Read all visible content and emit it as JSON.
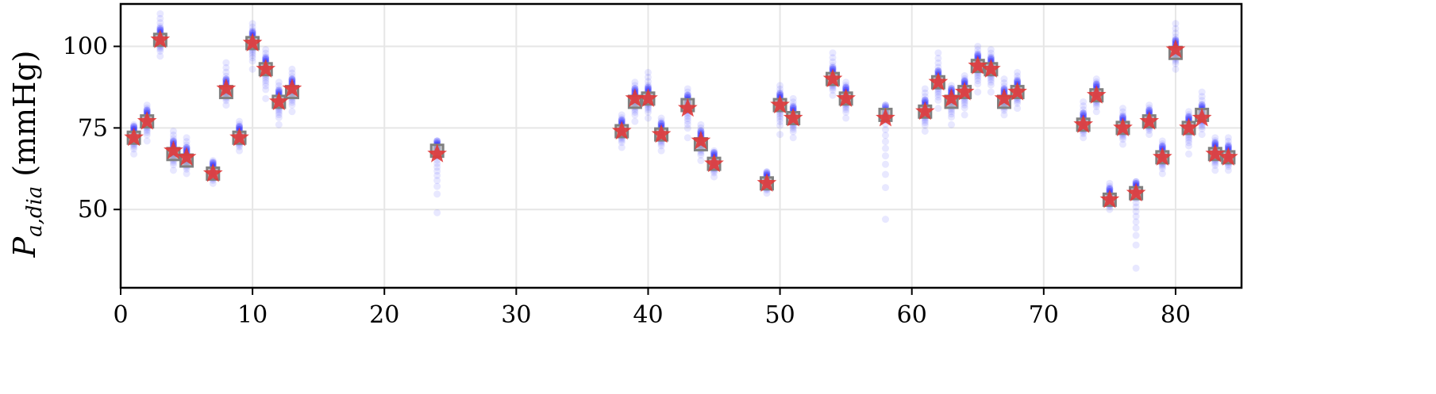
{
  "chart_data": {
    "type": "scatter",
    "title": "",
    "xlabel": "",
    "ylabel": {
      "symbol": "P",
      "subscript": "a,dia",
      "unit": "(mmHg)"
    },
    "xlim": [
      0,
      85
    ],
    "ylim": [
      26,
      113
    ],
    "xticks": [
      0,
      10,
      20,
      30,
      40,
      50,
      60,
      70,
      80
    ],
    "yticks": [
      50,
      75,
      100
    ],
    "grid": true,
    "colors": {
      "samples": "#0000ff",
      "square_fill": "#b8b8b8",
      "square_edge": "#808080",
      "star": "#e03838",
      "grid": "#e6e6e6"
    },
    "series": [
      {
        "marker": "square",
        "x": [
          1,
          2,
          3,
          4,
          5,
          7,
          8,
          9,
          10,
          11,
          12,
          13,
          24,
          38,
          39,
          40,
          41,
          43,
          44,
          45,
          49,
          50,
          51,
          54,
          55,
          58,
          61,
          62,
          63,
          64,
          65,
          66,
          67,
          68,
          73,
          74,
          75,
          76,
          77,
          78,
          79,
          80,
          81,
          82,
          83,
          84
        ],
        "y": [
          72,
          77,
          102,
          67,
          65,
          61,
          86,
          72,
          101,
          93,
          83,
          86,
          68,
          74,
          83,
          84,
          73,
          82,
          70,
          64,
          58,
          82,
          78,
          90,
          84,
          79,
          80,
          89,
          83,
          86,
          94,
          93,
          83,
          86,
          76,
          85,
          53,
          75,
          55,
          77,
          66,
          98,
          75,
          79,
          67,
          66
        ]
      },
      {
        "marker": "star",
        "x": [
          1,
          2,
          3,
          4,
          5,
          7,
          8,
          9,
          10,
          11,
          12,
          13,
          24,
          38,
          39,
          40,
          41,
          43,
          44,
          45,
          49,
          50,
          51,
          54,
          55,
          58,
          61,
          62,
          63,
          64,
          65,
          66,
          67,
          68,
          73,
          74,
          75,
          76,
          77,
          78,
          79,
          80,
          81,
          82,
          83,
          84
        ],
        "y": [
          72,
          77,
          102,
          68,
          66,
          61,
          87,
          72,
          101,
          93,
          83,
          87,
          67,
          74,
          84,
          84,
          73,
          81,
          71,
          64,
          58,
          82,
          78,
          90,
          84,
          78,
          80,
          89,
          84,
          86,
          94,
          93,
          84,
          86,
          76,
          85,
          53,
          75,
          55,
          77,
          66,
          99,
          75,
          78,
          67,
          66
        ]
      },
      {
        "marker": "circle",
        "x": [
          1,
          2,
          3,
          4,
          5,
          7,
          8,
          9,
          10,
          11,
          12,
          13,
          24,
          38,
          39,
          40,
          41,
          43,
          44,
          45,
          49,
          50,
          51,
          54,
          55,
          58,
          61,
          62,
          63,
          64,
          65,
          66,
          67,
          68,
          73,
          74,
          75,
          76,
          77,
          78,
          79,
          80,
          81,
          82,
          83,
          84
        ],
        "ymin": [
          67,
          71,
          97,
          62,
          61,
          58,
          82,
          68,
          93,
          84,
          76,
          80,
          49,
          69,
          77,
          78,
          68,
          72,
          65,
          60,
          55,
          73,
          72,
          85,
          78,
          47,
          74,
          81,
          76,
          79,
          86,
          86,
          79,
          81,
          72,
          80,
          50,
          70,
          32,
          73,
          61,
          93,
          67,
          73,
          62,
          62
        ],
        "ymax": [
          76,
          82,
          110,
          74,
          72,
          65,
          95,
          77,
          107,
          99,
          89,
          93,
          71,
          79,
          89,
          92,
          78,
          87,
          76,
          68,
          61,
          88,
          84,
          98,
          89,
          80,
          87,
          98,
          88,
          91,
          100,
          99,
          90,
          92,
          83,
          90,
          58,
          81,
          58,
          82,
          71,
          107,
          80,
          86,
          72,
          72
        ]
      }
    ]
  }
}
